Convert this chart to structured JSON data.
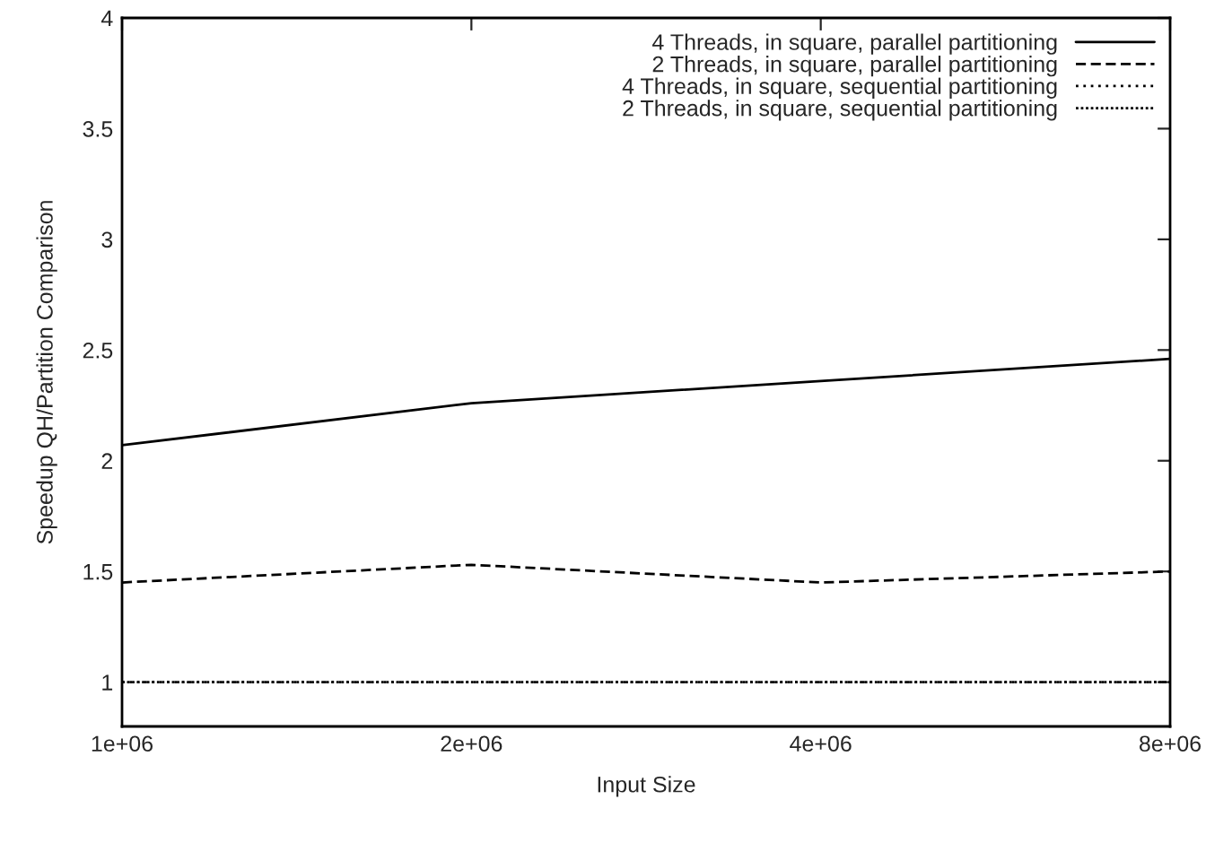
{
  "chart_data": {
    "type": "line",
    "xlabel": "Input Size",
    "ylabel": "Speedup QH/Partition Comparison",
    "x": [
      1000000,
      2000000,
      4000000,
      8000000
    ],
    "series": [
      {
        "name": "4 Threads, in square, parallel partitioning",
        "color": "#000000",
        "line_style": "solid",
        "values": [
          2.07,
          2.26,
          2.36,
          2.46
        ]
      },
      {
        "name": "2 Threads, in square, parallel partitioning",
        "color": "#000000",
        "line_style": "dashed",
        "values": [
          1.45,
          1.53,
          1.45,
          1.5
        ]
      },
      {
        "name": "4 Threads, in square, sequential partitioning",
        "color": "#000000",
        "line_style": "dotted",
        "values": [
          1.0,
          1.0,
          1.0,
          1.0
        ]
      },
      {
        "name": "2 Threads, in square, sequential partitioning",
        "color": "#000000",
        "line_style": "dotted",
        "values": [
          1.0,
          1.0,
          1.0,
          1.0
        ]
      }
    ],
    "log": "x",
    "xlim": [
      1000000,
      8000000
    ],
    "xticks": [
      {
        "value": 1000000,
        "label": "1e+06"
      },
      {
        "value": 2000000,
        "label": "2e+06"
      },
      {
        "value": 4000000,
        "label": "4e+06"
      },
      {
        "value": 8000000,
        "label": "8e+06"
      }
    ],
    "ylim": [
      0.8,
      4
    ],
    "yticks": [
      1,
      1.5,
      2,
      2.5,
      3,
      3.5,
      4
    ],
    "grid": false,
    "legend": "top right",
    "marker": "none"
  }
}
